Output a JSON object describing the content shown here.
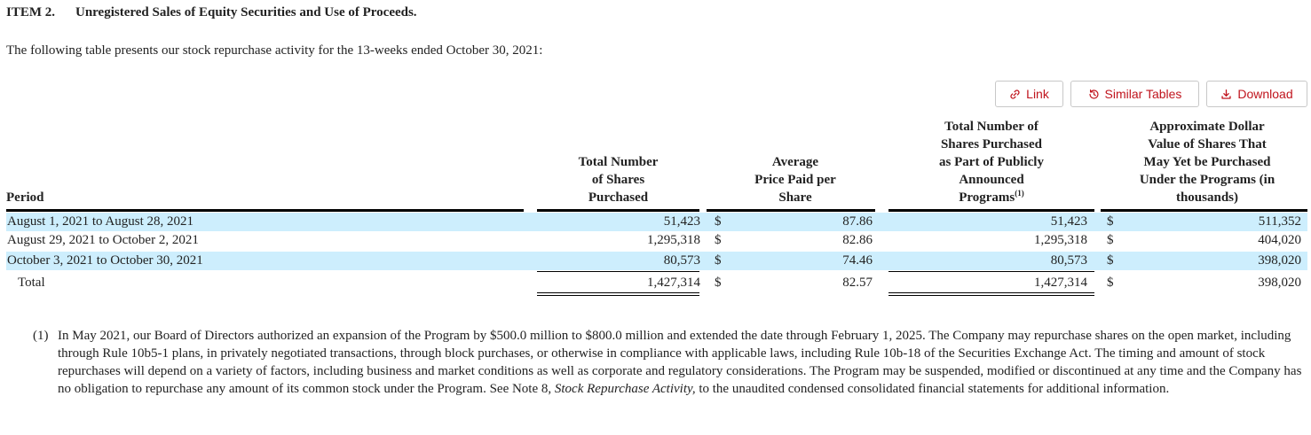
{
  "heading": {
    "number": "ITEM 2.",
    "title": "Unregistered Sales of Equity Securities and Use of Proceeds."
  },
  "intro": "The following table presents our stock repurchase activity for the 13-weeks ended October 30, 2021:",
  "toolbar": {
    "link_label": "Link",
    "similar_label": "Similar Tables",
    "download_label": "Download"
  },
  "table": {
    "headers": {
      "period": "Period",
      "total_shares": [
        "Total Number",
        "of Shares",
        "Purchased"
      ],
      "avg_price": [
        "Average",
        "Price Paid per",
        "Share"
      ],
      "public_programs": [
        "Total Number of",
        "Shares Purchased",
        "as Part of Publicly",
        "Announced",
        "Programs"
      ],
      "public_programs_sup": "(1)",
      "approx_value": [
        "Approximate Dollar",
        "Value of Shares That",
        "May Yet be Purchased",
        "Under the Programs (in",
        "thousands)"
      ]
    },
    "currency": "$",
    "rows": [
      {
        "period": "August 1, 2021 to August 28, 2021",
        "total_shares": "51,423",
        "avg_price": "87.86",
        "public_programs": "51,423",
        "approx_value": "511,352"
      },
      {
        "period": "August 29, 2021 to October 2, 2021",
        "total_shares": "1,295,318",
        "avg_price": "82.86",
        "public_programs": "1,295,318",
        "approx_value": "404,020"
      },
      {
        "period": "October 3, 2021 to October 30, 2021",
        "total_shares": "80,573",
        "avg_price": "74.46",
        "public_programs": "80,573",
        "approx_value": "398,020"
      }
    ],
    "total": {
      "label": "Total",
      "total_shares": "1,427,314",
      "avg_price": "82.57",
      "public_programs": "1,427,314",
      "approx_value": "398,020"
    }
  },
  "footnote": {
    "number": "(1)",
    "text_before": "In May 2021, our Board of Directors authorized an expansion of the Program by $500.0 million to $800.0 million and extended the date through February 1, 2025. The Company may repurchase shares on the open market, including through Rule 10b5-1 plans, in privately negotiated transactions, through block purchases, or otherwise in compliance with applicable laws, including Rule 10b-18 of the Securities Exchange Act. The timing and amount of stock repurchases will depend on a variety of factors, including business and market conditions as well as corporate and regulatory considerations. The Program may be suspended, modified or discontinued at any time and the Company has no obligation to repurchase any amount of its common stock under the Program. See Note 8, ",
    "italic": "Stock Repurchase Activity,",
    "text_after": " to the unaudited condensed consolidated financial statements for additional information."
  },
  "colors": {
    "accent": "#c0141d",
    "row_shade": "#cdeefd",
    "button_border": "#c8c8c8"
  }
}
